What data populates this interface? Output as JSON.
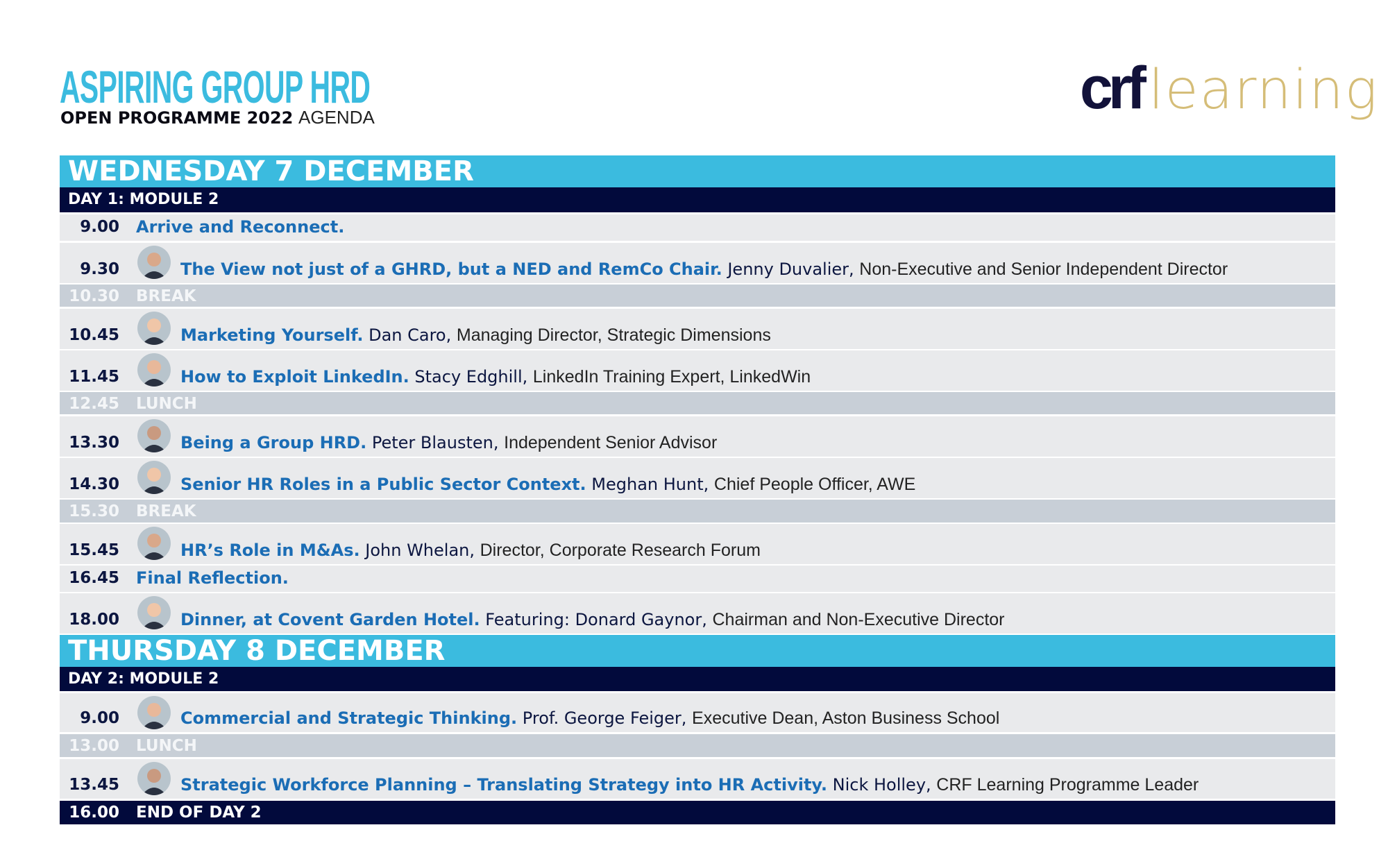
{
  "header": {
    "title": "ASPIRING GROUP HRD",
    "subtitle_bold": "OPEN PROGRAMME 2022",
    "subtitle_light": "AGENDA",
    "logo_part1": "crf",
    "logo_part2": "learning"
  },
  "colors": {
    "accent": "#3bbbdf",
    "navy": "#020a3c",
    "session_title": "#1b6db5",
    "logo_gold": "#d5bd78",
    "row_bg": "#e9eaec",
    "break_bg": "#c8cfd7"
  },
  "days": [
    {
      "heading": "WEDNESDAY 7 DECEMBER",
      "module": "DAY 1: MODULE 2",
      "items": [
        {
          "type": "session",
          "time": "9.00",
          "title": "Arrive and Reconnect."
        },
        {
          "type": "session",
          "time": "9.30",
          "title": "The View not just of a GHRD, but a NED and RemCo Chair.",
          "speaker": "Jenny Duvalier",
          "role": "Non-Executive and Senior Independent Director",
          "photo": "photo-jenny-duvalier"
        },
        {
          "type": "break",
          "time": "10.30",
          "title": "BREAK"
        },
        {
          "type": "session",
          "time": "10.45",
          "title": "Marketing Yourself.",
          "speaker": "Dan Caro",
          "role": "Managing Director, Strategic Dimensions",
          "photo": "photo-dan-caro"
        },
        {
          "type": "session",
          "time": "11.45",
          "title": "How to Exploit LinkedIn.",
          "speaker": "Stacy Edghill",
          "role": "LinkedIn Training Expert, LinkedWin",
          "photo": "photo-stacy-edghill"
        },
        {
          "type": "break",
          "time": "12.45",
          "title": "LUNCH"
        },
        {
          "type": "session",
          "time": "13.30",
          "title": "Being a Group HRD.",
          "speaker": "Peter Blausten",
          "role": "Independent Senior Advisor",
          "photo": "photo-peter-blausten"
        },
        {
          "type": "session",
          "time": "14.30",
          "title": "Senior HR Roles in a Public Sector Context.",
          "speaker": "Meghan Hunt",
          "role": "Chief People Officer, AWE",
          "photo": "photo-meghan-hunt"
        },
        {
          "type": "break",
          "time": "15.30",
          "title": "BREAK"
        },
        {
          "type": "session",
          "time": "15.45",
          "title": "HR’s Role in M&As.",
          "speaker": "John Whelan",
          "role": "Director, Corporate Research Forum",
          "photo": "photo-john-whelan"
        },
        {
          "type": "session",
          "time": "16.45",
          "title": "Final Reflection."
        },
        {
          "type": "session",
          "time": "18.00",
          "title": "Dinner, at Covent Garden Hotel.",
          "prefix": "Featuring: ",
          "speaker": "Donard Gaynor",
          "role": "Chairman and Non-Executive Director",
          "photo": "photo-donard-gaynor"
        }
      ]
    },
    {
      "heading": "THURSDAY 8 DECEMBER",
      "module": "DAY 2: MODULE 2",
      "items": [
        {
          "type": "session",
          "time": "9.00",
          "title": "Commercial and Strategic Thinking.",
          "speaker": "Prof. George Feiger",
          "role": "Executive Dean, Aston Business School",
          "photo": "photo-george-feiger"
        },
        {
          "type": "break",
          "time": "13.00",
          "title": "LUNCH"
        },
        {
          "type": "session",
          "time": "13.45",
          "title": "Strategic Workforce Planning – Translating Strategy into HR Activity.",
          "speaker": "Nick Holley",
          "role": "CRF Learning Programme Leader",
          "photo": "photo-nick-holley"
        },
        {
          "type": "end",
          "time": "16.00",
          "title": "END OF DAY 2"
        }
      ]
    }
  ]
}
